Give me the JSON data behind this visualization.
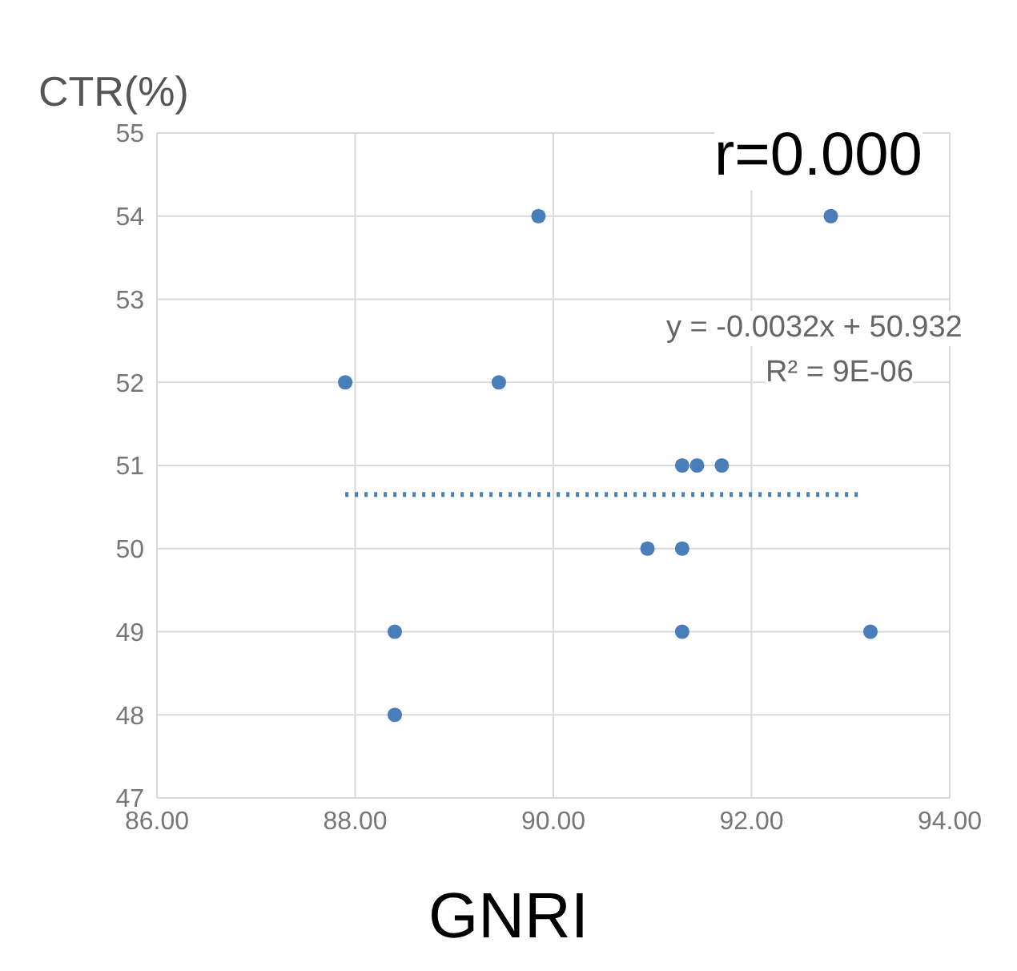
{
  "chart_data": {
    "type": "scatter",
    "xlabel": "GNRI",
    "ylabel": "CTR(%)",
    "xlim": [
      86,
      94
    ],
    "xticks": [
      {
        "value": 86,
        "label": "86.00"
      },
      {
        "value": 88,
        "label": "88.00"
      },
      {
        "value": 90,
        "label": "90.00"
      },
      {
        "value": 92,
        "label": "92.00"
      },
      {
        "value": 94,
        "label": "94.00"
      }
    ],
    "ylim": [
      47,
      55
    ],
    "yticks": [
      47,
      48,
      49,
      50,
      51,
      52,
      53,
      54,
      55
    ],
    "grid": true,
    "marker": "circle",
    "series": [
      {
        "color": "#4a7ebb",
        "x": [
          87.9,
          89.85,
          89.45,
          92.8,
          88.4,
          88.4,
          90.95,
          91.3,
          91.3,
          91.45,
          91.7,
          91.3,
          93.2
        ],
        "values": [
          52,
          54,
          52,
          54,
          49,
          48,
          50,
          50,
          51,
          51,
          51,
          49,
          49
        ]
      },
      {
        "type": "line",
        "color": "#4a7ebb",
        "line_style": "dotted",
        "marker": "none",
        "x": [
          87.9,
          93.1
        ],
        "values": [
          50.65,
          50.65
        ]
      }
    ],
    "annotations": [
      "r=0.000",
      "y = -0.0032x + 50.932",
      "R² = 9E-06"
    ]
  }
}
